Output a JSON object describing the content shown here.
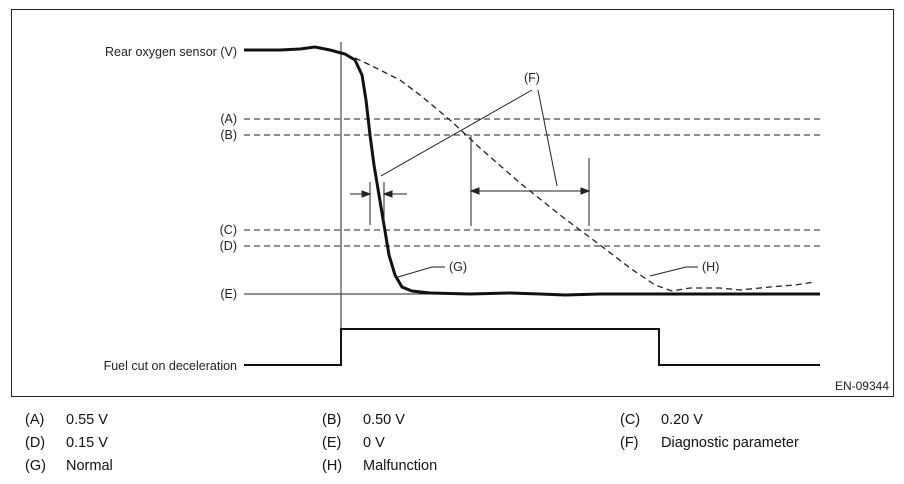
{
  "figure": {
    "id": "EN-09344",
    "y_axis_label": "Rear oxygen sensor (V)",
    "fuel_cut_label": "Fuel cut on deceleration",
    "level_labels": {
      "A": "(A)",
      "B": "(B)",
      "C": "(C)",
      "D": "(D)",
      "E": "(E)"
    },
    "callouts": {
      "F": "(F)",
      "G": "(G)",
      "H": "(H)"
    }
  },
  "legend": [
    {
      "key": "(A)",
      "value": "0.55 V"
    },
    {
      "key": "(B)",
      "value": "0.50 V"
    },
    {
      "key": "(C)",
      "value": "0.20 V"
    },
    {
      "key": "(D)",
      "value": "0.15 V"
    },
    {
      "key": "(E)",
      "value": "0 V"
    },
    {
      "key": "(F)",
      "value": "Diagnostic parameter"
    },
    {
      "key": "(G)",
      "value": "Normal"
    },
    {
      "key": "(H)",
      "value": "Malfunction"
    }
  ],
  "colors": {
    "line": "#111111",
    "frame": "#222222"
  }
}
